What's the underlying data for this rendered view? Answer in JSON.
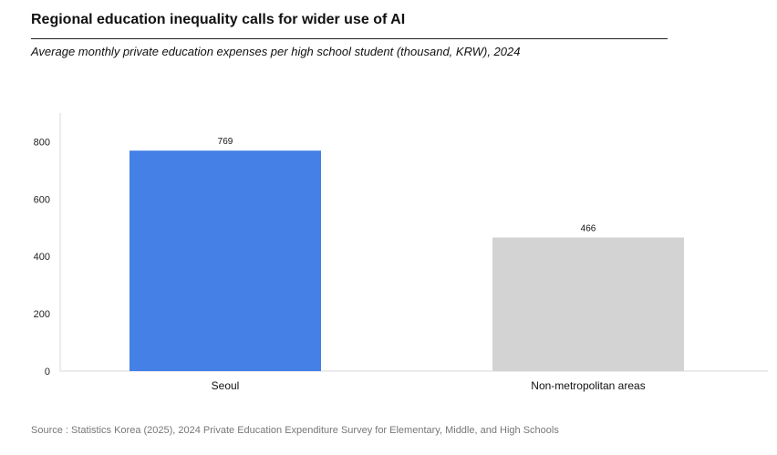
{
  "title": "Regional education inequality calls for wider use of AI",
  "subtitle": "Average monthly private education expenses per high school student (thousand, KRW), 2024",
  "source": "Source : Statistics Korea (2025), 2024 Private Education Expenditure Survey for Elementary, Middle, and High Schools",
  "chart_data": {
    "type": "bar",
    "title": "Average monthly private education expenses per high school student (thousand, KRW), 2024",
    "categories": [
      "Seoul",
      "Non-metropolitan areas"
    ],
    "values": [
      769,
      466
    ],
    "data_labels": [
      "769",
      "466"
    ],
    "colors": [
      "#4480E6",
      "#D3D3D3"
    ],
    "ylim": [
      0,
      900
    ],
    "yticks": [
      0,
      200,
      400,
      600,
      800
    ],
    "ytick_labels": [
      "0",
      "200",
      "400",
      "600",
      "800"
    ],
    "xlabel": "",
    "ylabel": "",
    "grid": false,
    "legend": "none"
  }
}
